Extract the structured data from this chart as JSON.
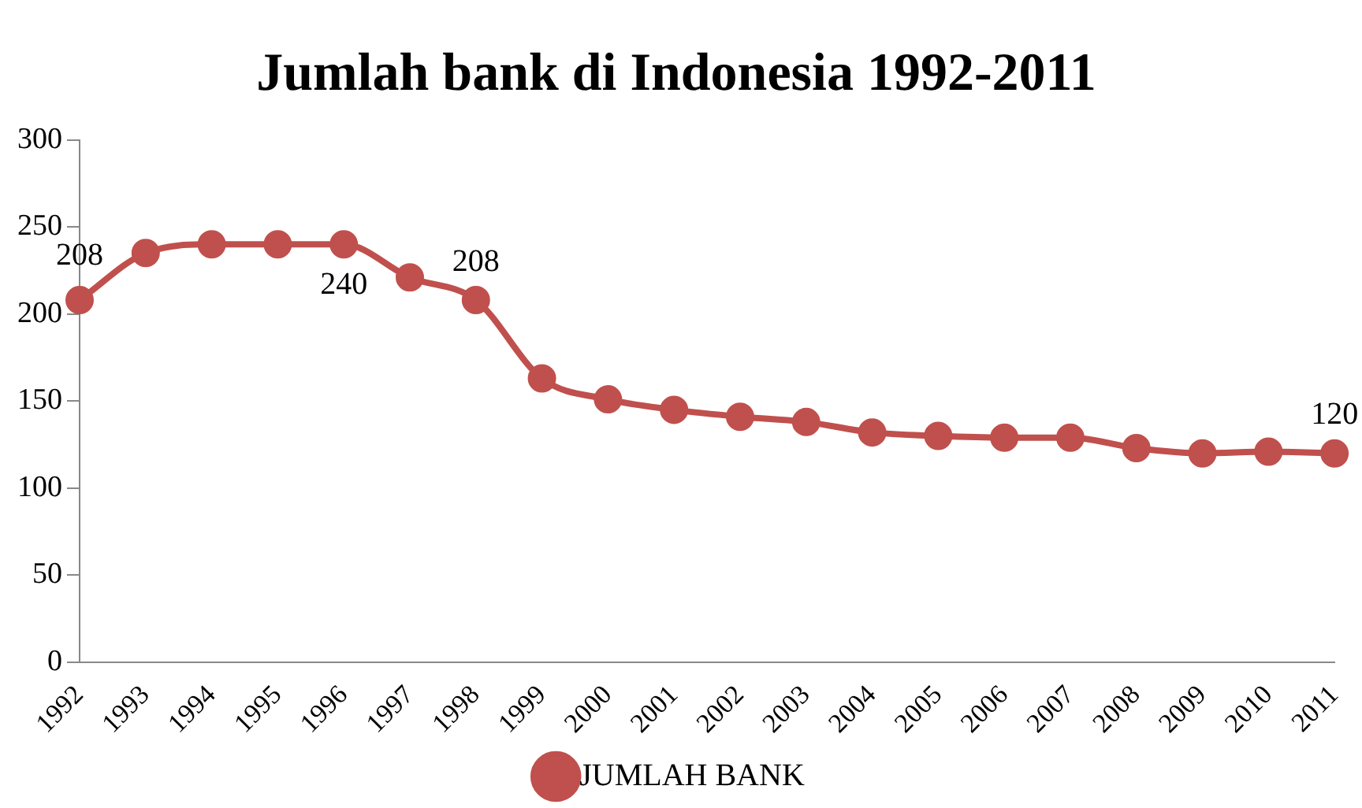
{
  "chart_data": {
    "type": "line",
    "title": "Jumlah bank di Indonesia 1992-2011",
    "categories": [
      "1992",
      "1993",
      "1994",
      "1995",
      "1996",
      "1997",
      "1998",
      "1999",
      "2000",
      "2001",
      "2002",
      "2003",
      "2004",
      "2005",
      "2006",
      "2007",
      "2008",
      "2009",
      "2010",
      "2011"
    ],
    "series": [
      {
        "name": "JUMLAH BANK",
        "color": "#c0504d",
        "values": [
          208,
          235,
          240,
          240,
          240,
          221,
          208,
          163,
          151,
          145,
          141,
          138,
          132,
          130,
          129,
          129,
          123,
          120,
          121,
          120
        ],
        "value_labels": [
          "208",
          null,
          null,
          null,
          "240",
          null,
          "208",
          null,
          null,
          null,
          null,
          null,
          null,
          null,
          null,
          null,
          null,
          null,
          null,
          "120"
        ]
      }
    ],
    "ylim": [
      0,
      300
    ],
    "yticks": [
      0,
      50,
      100,
      150,
      200,
      250,
      300
    ],
    "grid": false,
    "legend": "bottom",
    "marker": "circle",
    "line_style": "solid"
  }
}
